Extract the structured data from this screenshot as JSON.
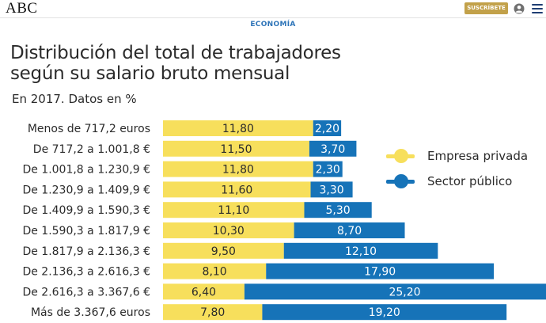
{
  "header": {
    "logo": "ABC",
    "subscribe_label": "SUSCRÍBETE",
    "section": "ECONOMÍA"
  },
  "colors": {
    "private": "#f7df5c",
    "public": "#1673b8",
    "subscribe": "#c2a14a",
    "section": "#2d74b8"
  },
  "chart_data": {
    "type": "bar",
    "stacked": true,
    "orientation": "horizontal",
    "title_lines": [
      "Distribución del total de trabajadores",
      "según su salario bruto mensual"
    ],
    "subtitle": "En 2017. Datos en %",
    "categories": [
      "Menos de 717,2 euros",
      "De 717,2 a 1.001,8 €",
      "De 1.001,8 a 1.230,9 €",
      "De 1.230,9 a 1.409,9 €",
      "De 1.409,9 a 1.590,3 €",
      "De 1.590,3 a 1.817,9 €",
      "De 1.817,9 a 2.136,3 €",
      "De 2.136,3 a 2.616,3 €",
      "De 2.616,3 a 3.367,6 €",
      "Más de 3.367,6 euros"
    ],
    "series": [
      {
        "name": "Empresa privada",
        "values": [
          11.8,
          11.5,
          11.8,
          11.6,
          11.1,
          10.3,
          9.5,
          8.1,
          6.4,
          7.8
        ],
        "labels": [
          "11,80",
          "11,50",
          "11,80",
          "11,60",
          "11,10",
          "10,30",
          "9,50",
          "8,10",
          "6,40",
          "7,80"
        ]
      },
      {
        "name": "Sector público",
        "values": [
          2.2,
          3.7,
          2.3,
          3.3,
          5.3,
          8.7,
          12.1,
          17.9,
          25.2,
          19.2
        ],
        "labels": [
          "2,20",
          "3,70",
          "2,30",
          "3,30",
          "5,30",
          "8,70",
          "12,10",
          "17,90",
          "25,20",
          "19,20"
        ]
      }
    ],
    "legend_position": "right"
  }
}
